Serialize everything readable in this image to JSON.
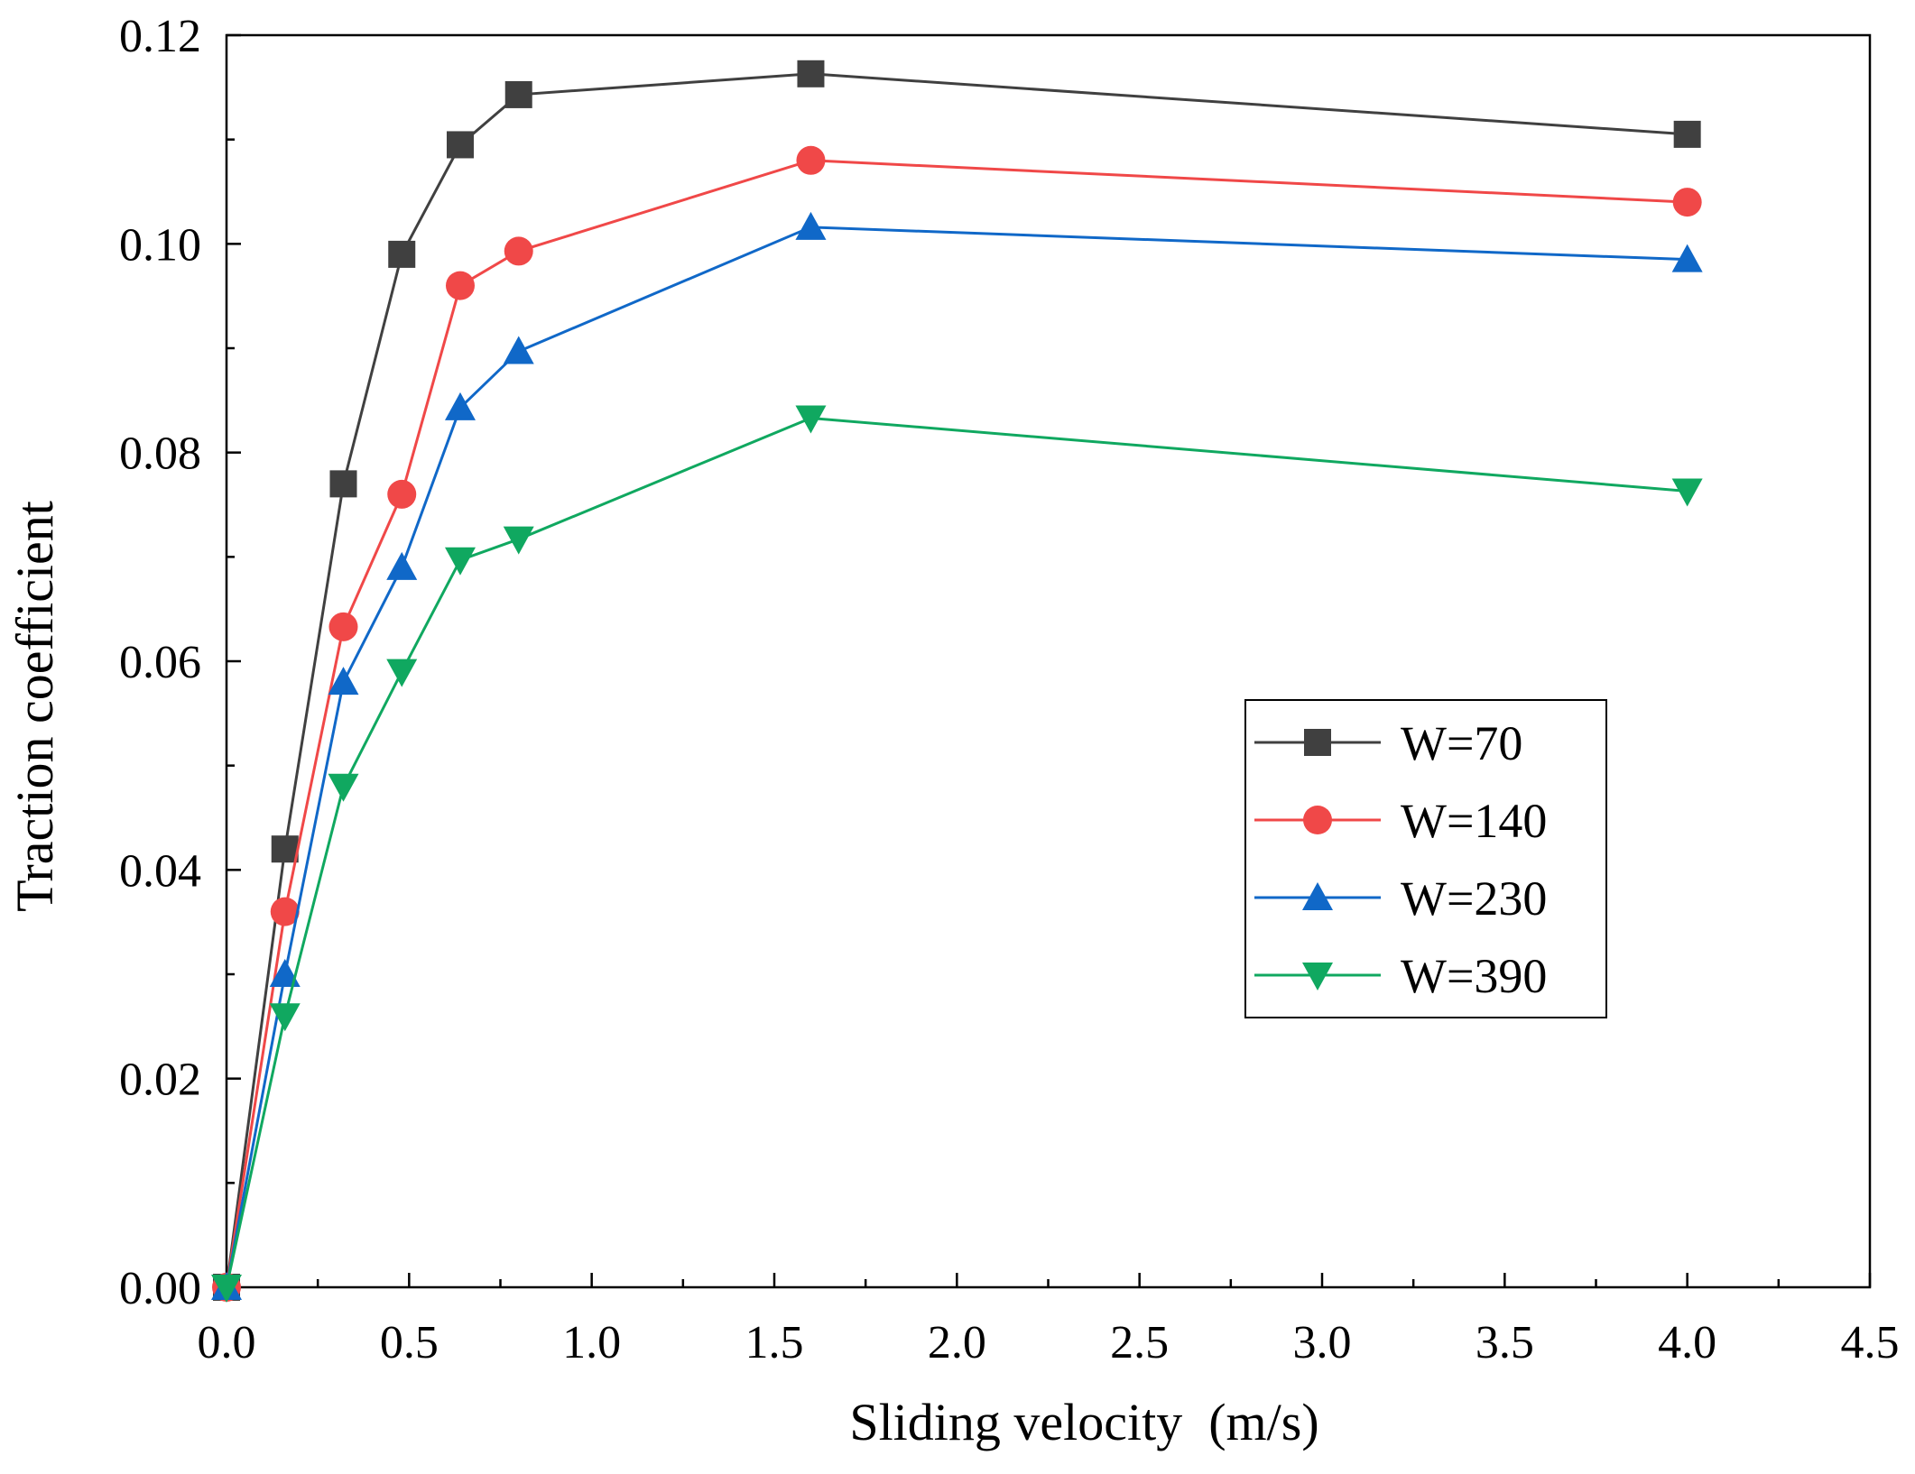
{
  "chart_data": {
    "type": "line",
    "title": "",
    "xlabel": "Sliding velocity  (m/s)",
    "ylabel": "Traction coefficient",
    "xlim": [
      0,
      4.5
    ],
    "ylim": [
      0,
      0.12
    ],
    "xticks": [
      0,
      0.5,
      1.0,
      1.5,
      2.0,
      2.5,
      3.0,
      3.5,
      4.0,
      4.5
    ],
    "xtick_labels": [
      "0.0",
      "0.5",
      "1.0",
      "1.5",
      "2.0",
      "2.5",
      "3.0",
      "3.5",
      "4.0",
      "4.5"
    ],
    "yticks": [
      0,
      0.02,
      0.04,
      0.06,
      0.08,
      0.1,
      0.12
    ],
    "ytick_labels": [
      "0.00",
      "0.02",
      "0.04",
      "0.06",
      "0.08",
      "0.10",
      "0.12"
    ],
    "grid": false,
    "legend_position": "center-right",
    "x": [
      0,
      0.16,
      0.32,
      0.48,
      0.64,
      0.8,
      1.6,
      4.0
    ],
    "series": [
      {
        "name": "W=70",
        "color": "#404040",
        "marker": "square",
        "values": [
          0,
          0.042,
          0.077,
          0.099,
          0.1095,
          0.1143,
          0.1163,
          0.1105
        ]
      },
      {
        "name": "W=140",
        "color": "#f04848",
        "marker": "circle",
        "values": [
          0,
          0.036,
          0.0633,
          0.076,
          0.096,
          0.0993,
          0.108,
          0.104
        ]
      },
      {
        "name": "W=230",
        "color": "#1068c8",
        "marker": "triangle-up",
        "values": [
          0,
          0.03,
          0.058,
          0.069,
          0.0843,
          0.0897,
          0.1016,
          0.0985
        ]
      },
      {
        "name": "W=390",
        "color": "#10a860",
        "marker": "triangle-down",
        "values": [
          0,
          0.026,
          0.048,
          0.059,
          0.0697,
          0.0717,
          0.0833,
          0.0763
        ]
      }
    ]
  }
}
